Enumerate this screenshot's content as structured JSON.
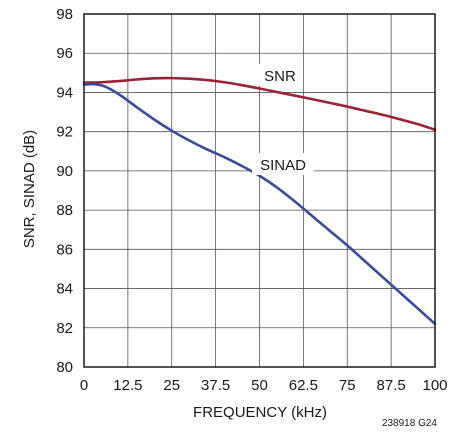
{
  "chart_data": {
    "type": "line",
    "xlabel": "FREQUENCY (kHz)",
    "ylabel": "SNR, SINAD (dB)",
    "xlim": [
      0,
      100
    ],
    "ylim": [
      80,
      98
    ],
    "x_ticks": [
      "0",
      "12.5",
      "25",
      "37.5",
      "50",
      "62.5",
      "75",
      "87.5",
      "100"
    ],
    "y_ticks": [
      "80",
      "82",
      "84",
      "86",
      "88",
      "90",
      "92",
      "94",
      "96",
      "98"
    ],
    "grid": true,
    "legend": "none",
    "figure_id": "238918 G24",
    "series": [
      {
        "name": "SNR",
        "color": "#9b2335",
        "x": [
          0,
          5,
          10,
          15,
          20,
          25,
          30,
          35,
          40,
          45,
          50,
          55,
          60,
          65,
          70,
          75,
          80,
          85,
          90,
          95,
          100
        ],
        "y": [
          94.5,
          94.52,
          94.58,
          94.66,
          94.72,
          94.73,
          94.7,
          94.63,
          94.52,
          94.37,
          94.2,
          94.02,
          93.84,
          93.66,
          93.47,
          93.28,
          93.07,
          92.86,
          92.63,
          92.39,
          92.1
        ]
      },
      {
        "name": "SINAD",
        "color": "#3c4a9c",
        "x": [
          0,
          3,
          6,
          10,
          15,
          20,
          25,
          30,
          35,
          40,
          45,
          50,
          55,
          60,
          65,
          70,
          75,
          80,
          85,
          90,
          95,
          100
        ],
        "y": [
          94.4,
          94.42,
          94.3,
          93.9,
          93.25,
          92.62,
          92.05,
          91.55,
          91.1,
          90.7,
          90.25,
          89.75,
          89.15,
          88.45,
          87.7,
          86.95,
          86.2,
          85.4,
          84.6,
          83.8,
          83.0,
          82.2
        ]
      }
    ]
  }
}
